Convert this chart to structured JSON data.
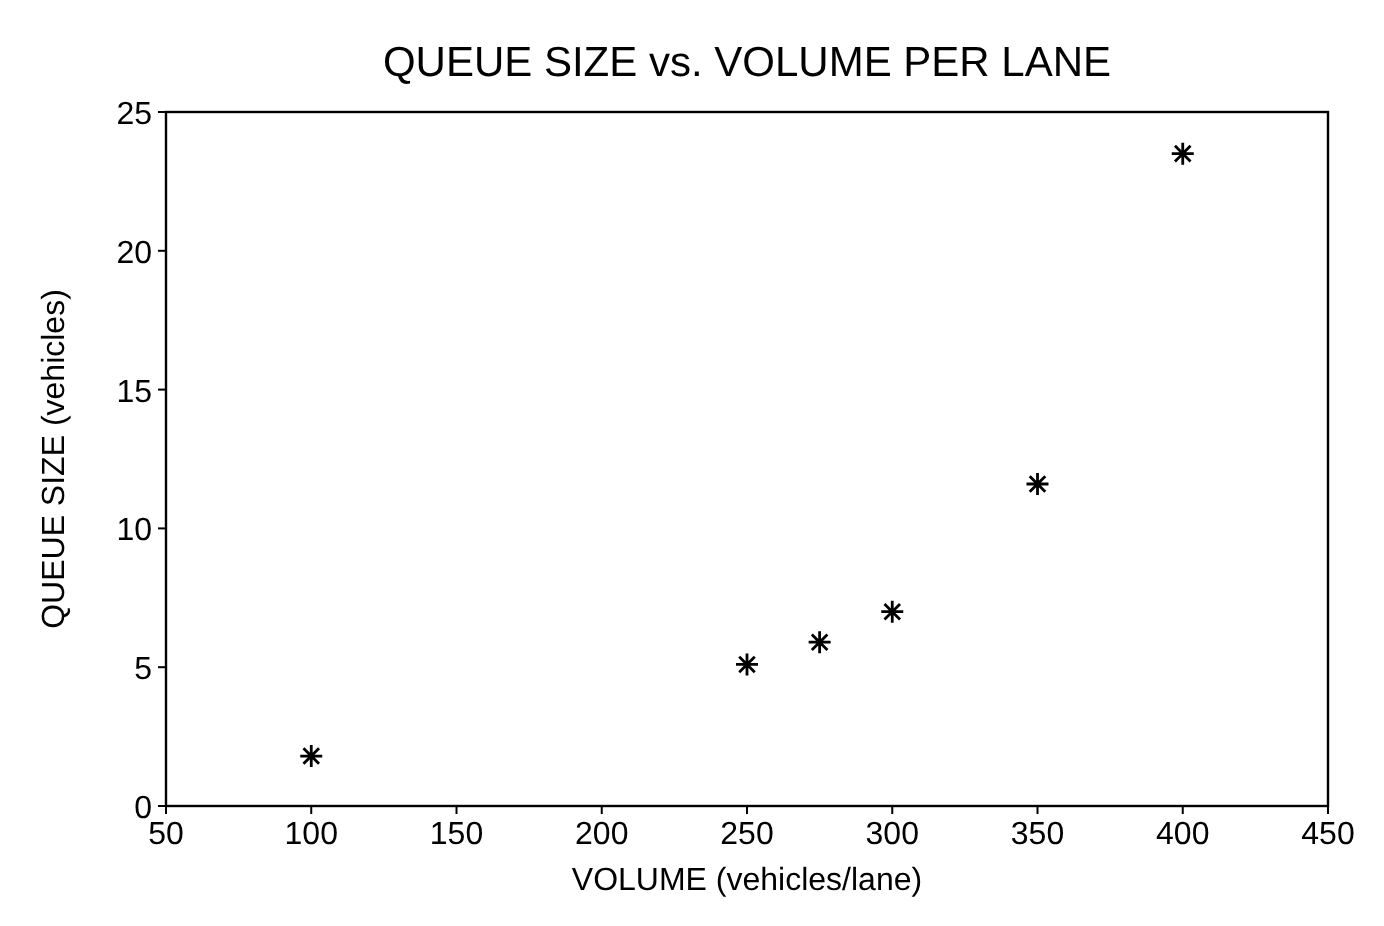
{
  "chart_data": {
    "type": "scatter",
    "title": "QUEUE SIZE vs. VOLUME PER LANE",
    "xlabel": "VOLUME (vehicles/lane)",
    "ylabel": "QUEUE SIZE (vehicles)",
    "x": [
      100,
      250,
      275,
      300,
      350,
      400
    ],
    "series": [
      {
        "color": "#000000",
        "values": [
          1.8,
          5.1,
          5.9,
          7.0,
          11.6,
          23.5
        ]
      }
    ],
    "xlim": [
      50,
      450
    ],
    "xticks": [
      50,
      100,
      150,
      200,
      250,
      300,
      350,
      400,
      450
    ],
    "ylim": [
      0,
      25
    ],
    "yticks": [
      0,
      5,
      10,
      15,
      20,
      25
    ],
    "grid": false,
    "marker": "cross"
  }
}
